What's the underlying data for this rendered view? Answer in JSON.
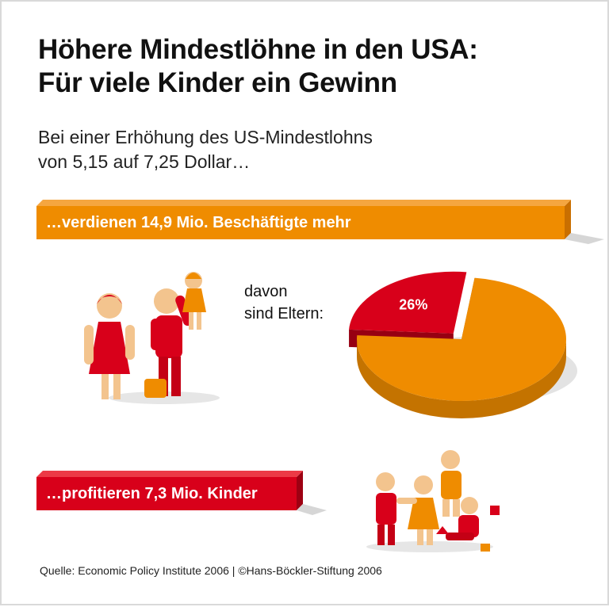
{
  "title_line1": "Höhere Mindestlöhne in den USA:",
  "title_line2": "Für viele Kinder ein Gewinn",
  "subtitle_line1": "Bei einer Erhöhung des US-Mindestlohns",
  "subtitle_line2": "von 5,15 auf 7,25 Dollar…",
  "bar_workers": "…verdienen 14,9 Mio. Beschäftigte mehr",
  "davon_line1": "davon",
  "davon_line2": "sind Eltern:",
  "bar_children": "…profitieren 7,3 Mio. Kinder",
  "source": "Quelle: Economic Policy Institute 2006 | ©Hans-Böckler-Stiftung 2006",
  "colors": {
    "orange": "#ef8c00",
    "red": "#d8001a"
  },
  "chart_data": {
    "type": "pie",
    "slices": [
      {
        "value": 26,
        "label": "26%",
        "color": "#d8001a"
      },
      {
        "value": 74,
        "label": "",
        "color": "#ef8c00"
      }
    ]
  }
}
